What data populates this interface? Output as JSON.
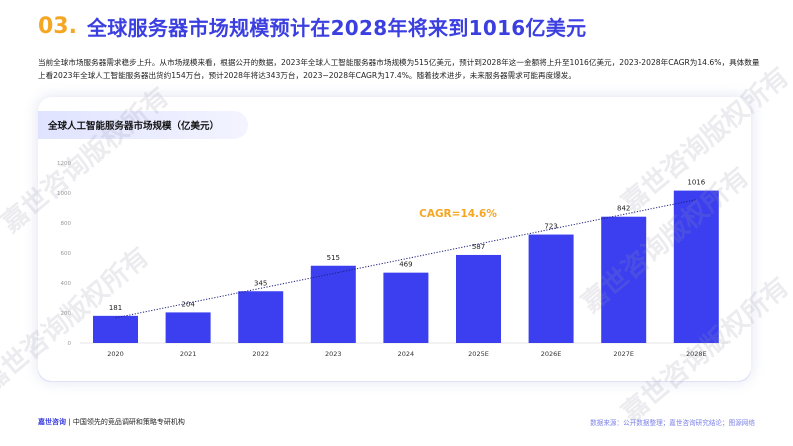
{
  "header": {
    "number": "03.",
    "title": "全球服务器市场规模预计在2028年将来到1016亿美元"
  },
  "intro": "当前全球市场服务器需求稳步上升。从市场规模来看，根据公开的数据，2023年全球人工智能服务器市场规模为515亿美元，预计到2028年这一金额将上升至1016亿美元，2023-2028年CAGR为14.6%，具体数量上看2023年全球人工智能服务器出货约154万台，预计2028年将达343万台，2023~2028年CAGR为17.4%。随着技术进步，未来服务器需求可能再度爆发。",
  "card": {
    "tab_title": "全球人工智能服务器市场规模（亿美元）"
  },
  "chart_data": {
    "type": "bar",
    "categories": [
      "2020",
      "2021",
      "2022",
      "2023",
      "2024",
      "2025E",
      "2026E",
      "2027E",
      "2028E"
    ],
    "values": [
      181,
      204,
      345,
      515,
      469,
      587,
      723,
      842,
      1016
    ],
    "ylim": [
      0,
      1200
    ],
    "yticks": [
      0,
      200,
      400,
      600,
      800,
      1000,
      1200
    ],
    "annotation": "CAGR=14.6%",
    "trendline": "dotted",
    "bar_color": "#3b3ff0",
    "annotation_color": "#f5a623",
    "grid": false,
    "title": "",
    "xlabel": "",
    "ylabel": ""
  },
  "footer": {
    "brand": "嘉世咨询",
    "tagline": "中国领先的竞品调研和策略专研机构",
    "source": "数据来源：公开数据整理；嘉世咨询研究结论；图源网络"
  },
  "watermark": "嘉世咨询版权所有",
  "colors": {
    "accent": "#3b3fe0",
    "highlight": "#f5a623"
  }
}
